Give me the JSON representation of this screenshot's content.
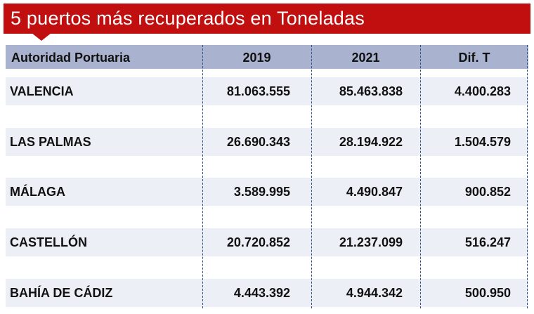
{
  "title": "5 puertos más recuperados en Toneladas",
  "colors": {
    "banner": "#c10e0e",
    "header_bg": "#a9b3cf",
    "row_bg": "#eceff6"
  },
  "columns": [
    "Autoridad Portuaria",
    "2019",
    "2021",
    "Dif. T"
  ],
  "rows": [
    [
      "VALENCIA",
      "81.063.555",
      "85.463.838",
      "4.400.283"
    ],
    [
      "LAS PALMAS",
      "26.690.343",
      "28.194.922",
      "1.504.579"
    ],
    [
      "MÁLAGA",
      "3.589.995",
      "4.490.847",
      "900.852"
    ],
    [
      "CASTELLÓN",
      "20.720.852",
      "21.237.099",
      "516.247"
    ],
    [
      "BAHÍA DE CÁDIZ",
      "4.443.392",
      "4.944.342",
      "500.950"
    ]
  ]
}
